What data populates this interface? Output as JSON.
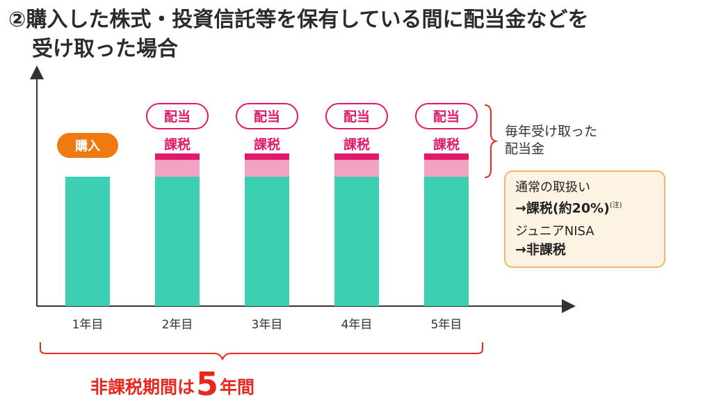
{
  "heading": {
    "line1": "②購入した株式・投資信託等を保有している間に配当金などを",
    "line2": "受け取った場合"
  },
  "chart_data": {
    "type": "bar",
    "categories": [
      "1年目",
      "2年目",
      "3年目",
      "4年目",
      "5年目"
    ],
    "series": [
      {
        "values": [
          1,
          1,
          1,
          1,
          1
        ]
      },
      {
        "values": [
          0,
          0.13,
          0.13,
          0.13,
          0.13
        ]
      },
      {
        "values": [
          0,
          0.05,
          0.05,
          0.05,
          0.05
        ]
      }
    ],
    "colors": [
      "#3ccfb2",
      "#f2a3c4",
      "#e0196a"
    ],
    "purchase_label": "購入",
    "dividend_label": "配当",
    "tax_label": "課税",
    "grid": false
  },
  "annotation": {
    "dividend_note_line1": "毎年受け取った",
    "dividend_note_line2": "配当金"
  },
  "infobox": {
    "normal_title": "通常の取扱い",
    "normal_value": "→課税(約20%)",
    "normal_note": "(注)",
    "nisa_title": "ジュニアNISA",
    "nisa_value": "→非課税"
  },
  "period": {
    "prefix": "非課税期間は",
    "number": "5",
    "suffix": "年間"
  },
  "colors": {
    "accent_red": "#e8271f",
    "dividend_pink": "#e0196a",
    "purchase_orange": "#f07a12",
    "box_border": "#f4b66a"
  }
}
